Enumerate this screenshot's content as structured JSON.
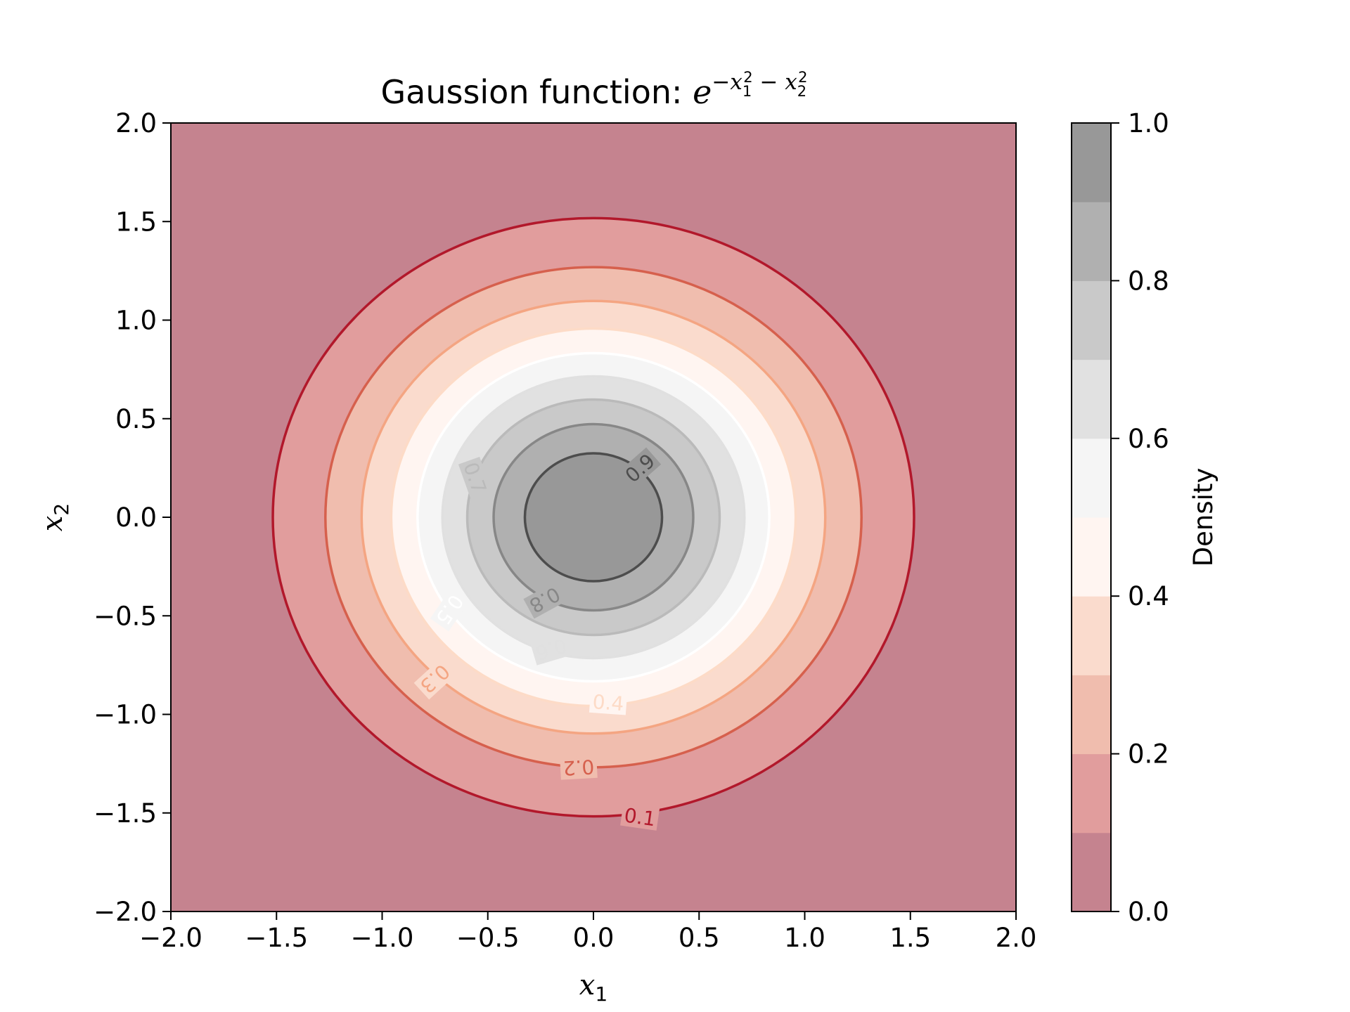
{
  "chart_data": {
    "type": "contour",
    "title_text": "Gaussion function: ",
    "title_formula": {
      "base": "e",
      "exponent": [
        {
          "text": "−x",
          "sub": "1",
          "sup": "2"
        },
        {
          "text": " − x",
          "sub": "2",
          "sup": "2"
        }
      ]
    },
    "function": "exp(-x1^2 - x2^2)",
    "xlabel": {
      "var": "x",
      "sub": "1"
    },
    "ylabel": {
      "var": "x",
      "sub": "2"
    },
    "xlim": [
      -2.0,
      2.0
    ],
    "ylim": [
      -2.0,
      2.0
    ],
    "xticks": [
      "−2.0",
      "−1.5",
      "−1.0",
      "−0.5",
      "0.0",
      "0.5",
      "1.0",
      "1.5",
      "2.0"
    ],
    "yticks": [
      "−2.0",
      "−1.5",
      "−1.0",
      "−0.5",
      "0.0",
      "0.5",
      "1.0",
      "1.5",
      "2.0"
    ],
    "levels": [
      0.0,
      0.1,
      0.2,
      0.3,
      0.4,
      0.5,
      0.6,
      0.7,
      0.8,
      0.9,
      1.0
    ],
    "fill_colors": [
      "#c5838f",
      "#e19d9d",
      "#f0bdae",
      "#fadbcd",
      "#fff5f1",
      "#f5f5f5",
      "#e1e1e1",
      "#c9c9c9",
      "#b0b0b0",
      "#989898"
    ],
    "line_colors": [
      "#b2182b",
      "#d6604d",
      "#f4a582",
      "#fddbc7",
      "#ffffff",
      "#e0e0e0",
      "#bababa",
      "#878787",
      "#4d4d4d"
    ],
    "contour_labels": [
      {
        "level": 0.1,
        "text": "0.1",
        "x": 0.22,
        "y": -1.52
      },
      {
        "level": 0.2,
        "text": "0.2",
        "x": -0.07,
        "y": -1.27
      },
      {
        "level": 0.3,
        "text": "0.3",
        "x": -0.75,
        "y": -0.82
      },
      {
        "level": 0.4,
        "text": "0.4",
        "x": 0.07,
        "y": -0.94
      },
      {
        "level": 0.5,
        "text": "0.5",
        "x": -0.68,
        "y": -0.47
      },
      {
        "level": 0.6,
        "text": "0.6",
        "x": -0.2,
        "y": -0.67
      },
      {
        "level": 0.7,
        "text": "0.7",
        "x": -0.56,
        "y": 0.2
      },
      {
        "level": 0.8,
        "text": "0.8",
        "x": -0.23,
        "y": -0.42
      },
      {
        "level": 0.9,
        "text": "0.9",
        "x": 0.22,
        "y": 0.25
      }
    ],
    "colorbar": {
      "label": "Density",
      "ticks": [
        "0.0",
        "0.2",
        "0.4",
        "0.6",
        "0.8",
        "1.0"
      ],
      "range": [
        0.0,
        1.0
      ]
    }
  }
}
